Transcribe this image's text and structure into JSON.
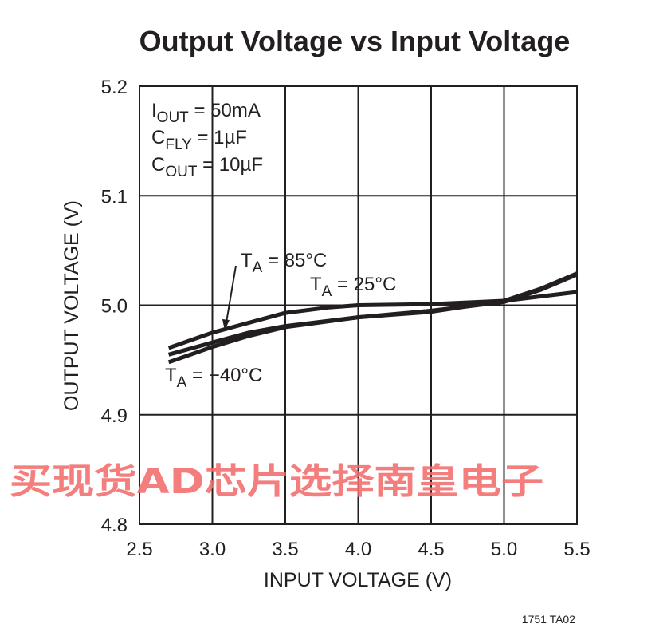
{
  "chart_data": {
    "type": "line",
    "title": "Output Voltage vs Input Voltage",
    "xlabel": "INPUT VOLTAGE (V)",
    "ylabel": "OUTPUT VOLTAGE (V)",
    "xlim": [
      2.5,
      5.5
    ],
    "ylim": [
      4.8,
      5.2
    ],
    "xticks": [
      2.5,
      3.0,
      3.5,
      4.0,
      4.5,
      5.0,
      5.5
    ],
    "xtick_labels": [
      "2.5",
      "3.0",
      "3.5",
      "4.0",
      "4.5",
      "5.0",
      "5.5"
    ],
    "yticks": [
      4.8,
      4.9,
      5.0,
      5.1,
      5.2
    ],
    "ytick_labels": [
      "4.8",
      "4.9",
      "5.0",
      "5.1",
      "5.2"
    ],
    "grid": true,
    "conditions": [
      {
        "main": "I",
        "sub": "OUT",
        "rest": " = 50mA"
      },
      {
        "main": "C",
        "sub": "FLY",
        "rest": " = 1µF"
      },
      {
        "main": "C",
        "sub": "OUT",
        "rest": " = 10µF"
      }
    ],
    "series": [
      {
        "name": "TA = 85°C",
        "label": {
          "main": "T",
          "sub": "A",
          "rest": " = 85°C"
        },
        "x": [
          2.7,
          3.0,
          3.25,
          3.5,
          4.0,
          4.5,
          5.0,
          5.25,
          5.5
        ],
        "y": [
          4.955,
          4.966,
          4.975,
          4.981,
          4.989,
          4.994,
          5.004,
          5.015,
          5.029
        ]
      },
      {
        "name": "TA = 25°C",
        "label": {
          "main": "T",
          "sub": "A",
          "rest": " = 25°C"
        },
        "x": [
          2.7,
          3.0,
          3.5,
          3.8,
          4.0,
          4.5,
          5.0,
          5.5
        ],
        "y": [
          4.961,
          4.975,
          4.993,
          4.998,
          5.0,
          5.001,
          5.004,
          5.012
        ]
      },
      {
        "name": "TA = -40°C",
        "label": {
          "main": "T",
          "sub": "A",
          "rest": " = −40°C"
        },
        "x": [
          2.7,
          3.0,
          3.25,
          3.5,
          4.0,
          4.5,
          5.0,
          5.25,
          5.5
        ],
        "y": [
          4.948,
          4.962,
          4.972,
          4.98,
          4.989,
          4.995,
          5.003,
          5.014,
          5.028
        ]
      }
    ],
    "figure_id": "1751 TA02"
  },
  "watermark": "买现货AD芯片选择南皇电子",
  "colors": {
    "ink": "#231f20",
    "watermark": "#f26b6b"
  }
}
